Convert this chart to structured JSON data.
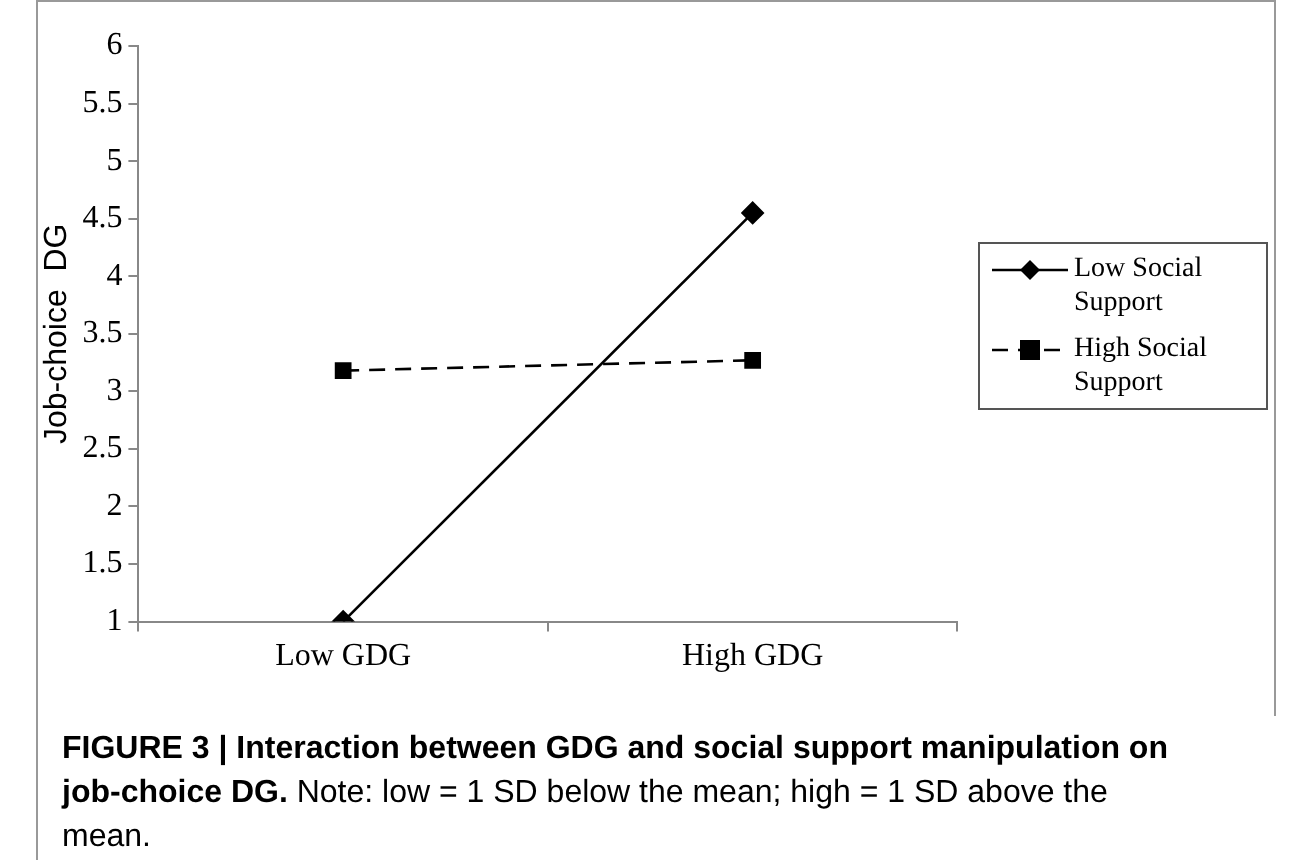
{
  "chart_data": {
    "type": "line",
    "categories": [
      "Low GDG",
      "High GDG"
    ],
    "series": [
      {
        "name": "Low Social Support",
        "color": "#000000",
        "values": [
          1.0,
          4.55
        ],
        "marker": "diamond",
        "line_style": "solid"
      },
      {
        "name": "High Social Support",
        "color": "#000000",
        "values": [
          3.18,
          3.27
        ],
        "marker": "square",
        "line_style": "dashed"
      }
    ],
    "ylabel": "Job-choice  DG",
    "ylim": [
      1,
      6
    ],
    "yticks": [
      1,
      1.5,
      2,
      2.5,
      3,
      3.5,
      4,
      4.5,
      5,
      5.5,
      6
    ],
    "grid": false,
    "legend": "right",
    "annotations": [
      "FIGURE 3 | Interaction between GDG and social support manipulation on job-choice DG.",
      "Note: low = 1 SD below the mean; high = 1 SD above the mean."
    ]
  }
}
